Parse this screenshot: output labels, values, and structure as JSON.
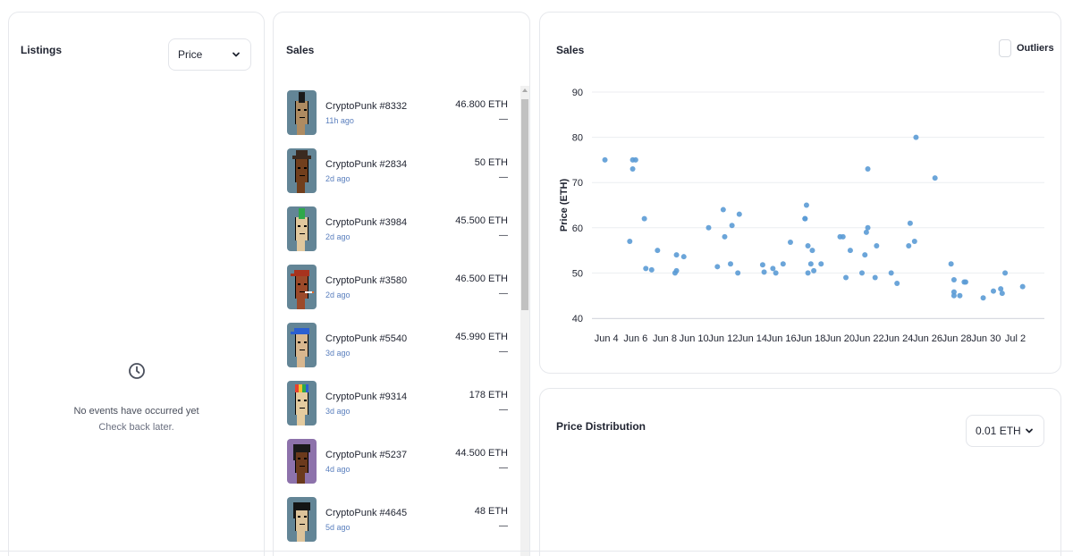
{
  "listings": {
    "title": "Listings",
    "sort_select": "Price",
    "empty_title": "No events have occurred yet",
    "empty_sub": "Check back later."
  },
  "sales": {
    "title": "Sales",
    "items": [
      {
        "name": "CryptoPunk #8332",
        "time": "11h ago",
        "price": "46.800 ETH",
        "usd": "—",
        "bg": "#638596",
        "skin": "#ae8b61",
        "hair": "#1a1a1a",
        "style": "mohawk"
      },
      {
        "name": "CryptoPunk #2834",
        "time": "2d ago",
        "price": "50 ETH",
        "usd": "—",
        "bg": "#638596",
        "skin": "#713f1d",
        "hair": "#3a2a20",
        "style": "hat"
      },
      {
        "name": "CryptoPunk #3984",
        "time": "2d ago",
        "price": "45.500 ETH",
        "usd": "—",
        "bg": "#638596",
        "skin": "#e0c79d",
        "hair": "#2ea84a",
        "style": "mohawk-green"
      },
      {
        "name": "CryptoPunk #3580",
        "time": "2d ago",
        "price": "46.500 ETH",
        "usd": "—",
        "bg": "#638596",
        "skin": "#9c4a2a",
        "hair": "#a8331e",
        "style": "cap-cig"
      },
      {
        "name": "CryptoPunk #5540",
        "time": "3d ago",
        "price": "45.990 ETH",
        "usd": "—",
        "bg": "#638596",
        "skin": "#d8b78f",
        "hair": "#2b5fd1",
        "style": "cap"
      },
      {
        "name": "CryptoPunk #9314",
        "time": "3d ago",
        "price": "178 ETH",
        "usd": "—",
        "bg": "#638596",
        "skin": "#e4cb9f",
        "hair": "#e8402f",
        "style": "rainbow"
      },
      {
        "name": "CryptoPunk #5237",
        "time": "4d ago",
        "price": "44.500 ETH",
        "usd": "—",
        "bg": "#8d72ab",
        "skin": "#6b3a1c",
        "hair": "#1a1a1a",
        "style": "dark"
      },
      {
        "name": "CryptoPunk #4645",
        "time": "5d ago",
        "price": "48 ETH",
        "usd": "—",
        "bg": "#638596",
        "skin": "#dcc39a",
        "hair": "#141414",
        "style": "wild"
      }
    ]
  },
  "chart_panel": {
    "title": "Sales",
    "outliers_label": "Outliers"
  },
  "distribution": {
    "title": "Price Distribution",
    "bin_select": "0.01 ETH"
  },
  "colors": {
    "point": "#5b9bd5",
    "grid": "#eceef1",
    "link": "#5a7fbe"
  },
  "chart_data": {
    "type": "scatter",
    "title": "",
    "xlabel": "",
    "ylabel": "Price (ETH)",
    "ylim": [
      40,
      90
    ],
    "yticks": [
      40,
      50,
      60,
      70,
      80,
      90
    ],
    "xlim": [
      "2023-06-03.5",
      "2023-07-03.5"
    ],
    "xticks": [
      "Jun 4",
      "Jun 6",
      "Jun 8",
      "Jun 10",
      "Jun 12",
      "Jun 14",
      "Jun 16",
      "Jun 18",
      "Jun 20",
      "Jun 22",
      "Jun 24",
      "Jun 26",
      "Jun 28",
      "Jun 30",
      "Jul 2"
    ],
    "grid": true,
    "series": [
      {
        "x": [
          "Jun 3.9",
          "Jun 5.6",
          "Jun 5.8",
          "Jun 5.8",
          "Jun 6.0",
          "Jun 6.6",
          "Jun 6.7",
          "Jun 7.1",
          "Jun 7.5",
          "Jun 8.7",
          "Jun 8.8",
          "Jun 8.8",
          "Jun 9.3",
          "Jun 11.0",
          "Jun 11.6",
          "Jun 12.0",
          "Jun 12.1",
          "Jun 12.5",
          "Jun 12.6",
          "Jun 13.0",
          "Jun 13.1",
          "Jun 14.7",
          "Jun 14.8",
          "Jun 15.4",
          "Jun 15.6",
          "Jun 16.1",
          "Jun 16.6",
          "Jun 17.6",
          "Jun 17.6",
          "Jun 17.7",
          "Jun 17.8",
          "Jun 17.8",
          "Jun 18.0",
          "Jun 18.1",
          "Jun 18.2",
          "Jun 18.7",
          "Jun 20.0",
          "Jun 20.2",
          "Jun 20.4",
          "Jun 20.7",
          "Jun 21.5",
          "Jun 21.7",
          "Jun 21.8",
          "Jun 21.9",
          "Jun 21.9",
          "Jun 22.4",
          "Jun 22.5",
          "Jun 23.5",
          "Jun 23.9",
          "Jun 24.7",
          "Jun 24.8",
          "Jun 25.1",
          "Jun 25.2",
          "Jun 26.5",
          "Jun 27.6",
          "Jun 27.8",
          "Jun 27.8",
          "Jun 27.8",
          "Jun 28.2",
          "Jun 28.5",
          "Jun 28.6",
          "Jun 29.8",
          "Jun 30.5",
          "Jun 31.0",
          "Jun 31.1",
          "Jun 31.3",
          "Jul 2.5"
        ],
        "y": [
          75,
          57,
          73,
          75,
          75,
          62,
          51,
          50.7,
          55,
          50,
          50.5,
          54,
          53.6,
          60,
          51.4,
          64,
          58,
          52,
          60.5,
          50,
          63,
          51.8,
          50.2,
          51,
          50,
          52,
          56.8,
          62,
          62,
          65,
          56,
          50,
          52,
          55,
          50.5,
          52,
          58,
          58,
          49,
          55,
          50,
          54,
          59,
          60,
          73,
          49,
          56,
          50,
          47.7,
          56,
          61,
          57,
          80,
          71,
          52,
          45,
          45.8,
          48.5,
          45,
          48,
          48,
          44.5,
          46,
          46.5,
          45.5,
          50,
          47
        ]
      }
    ]
  }
}
